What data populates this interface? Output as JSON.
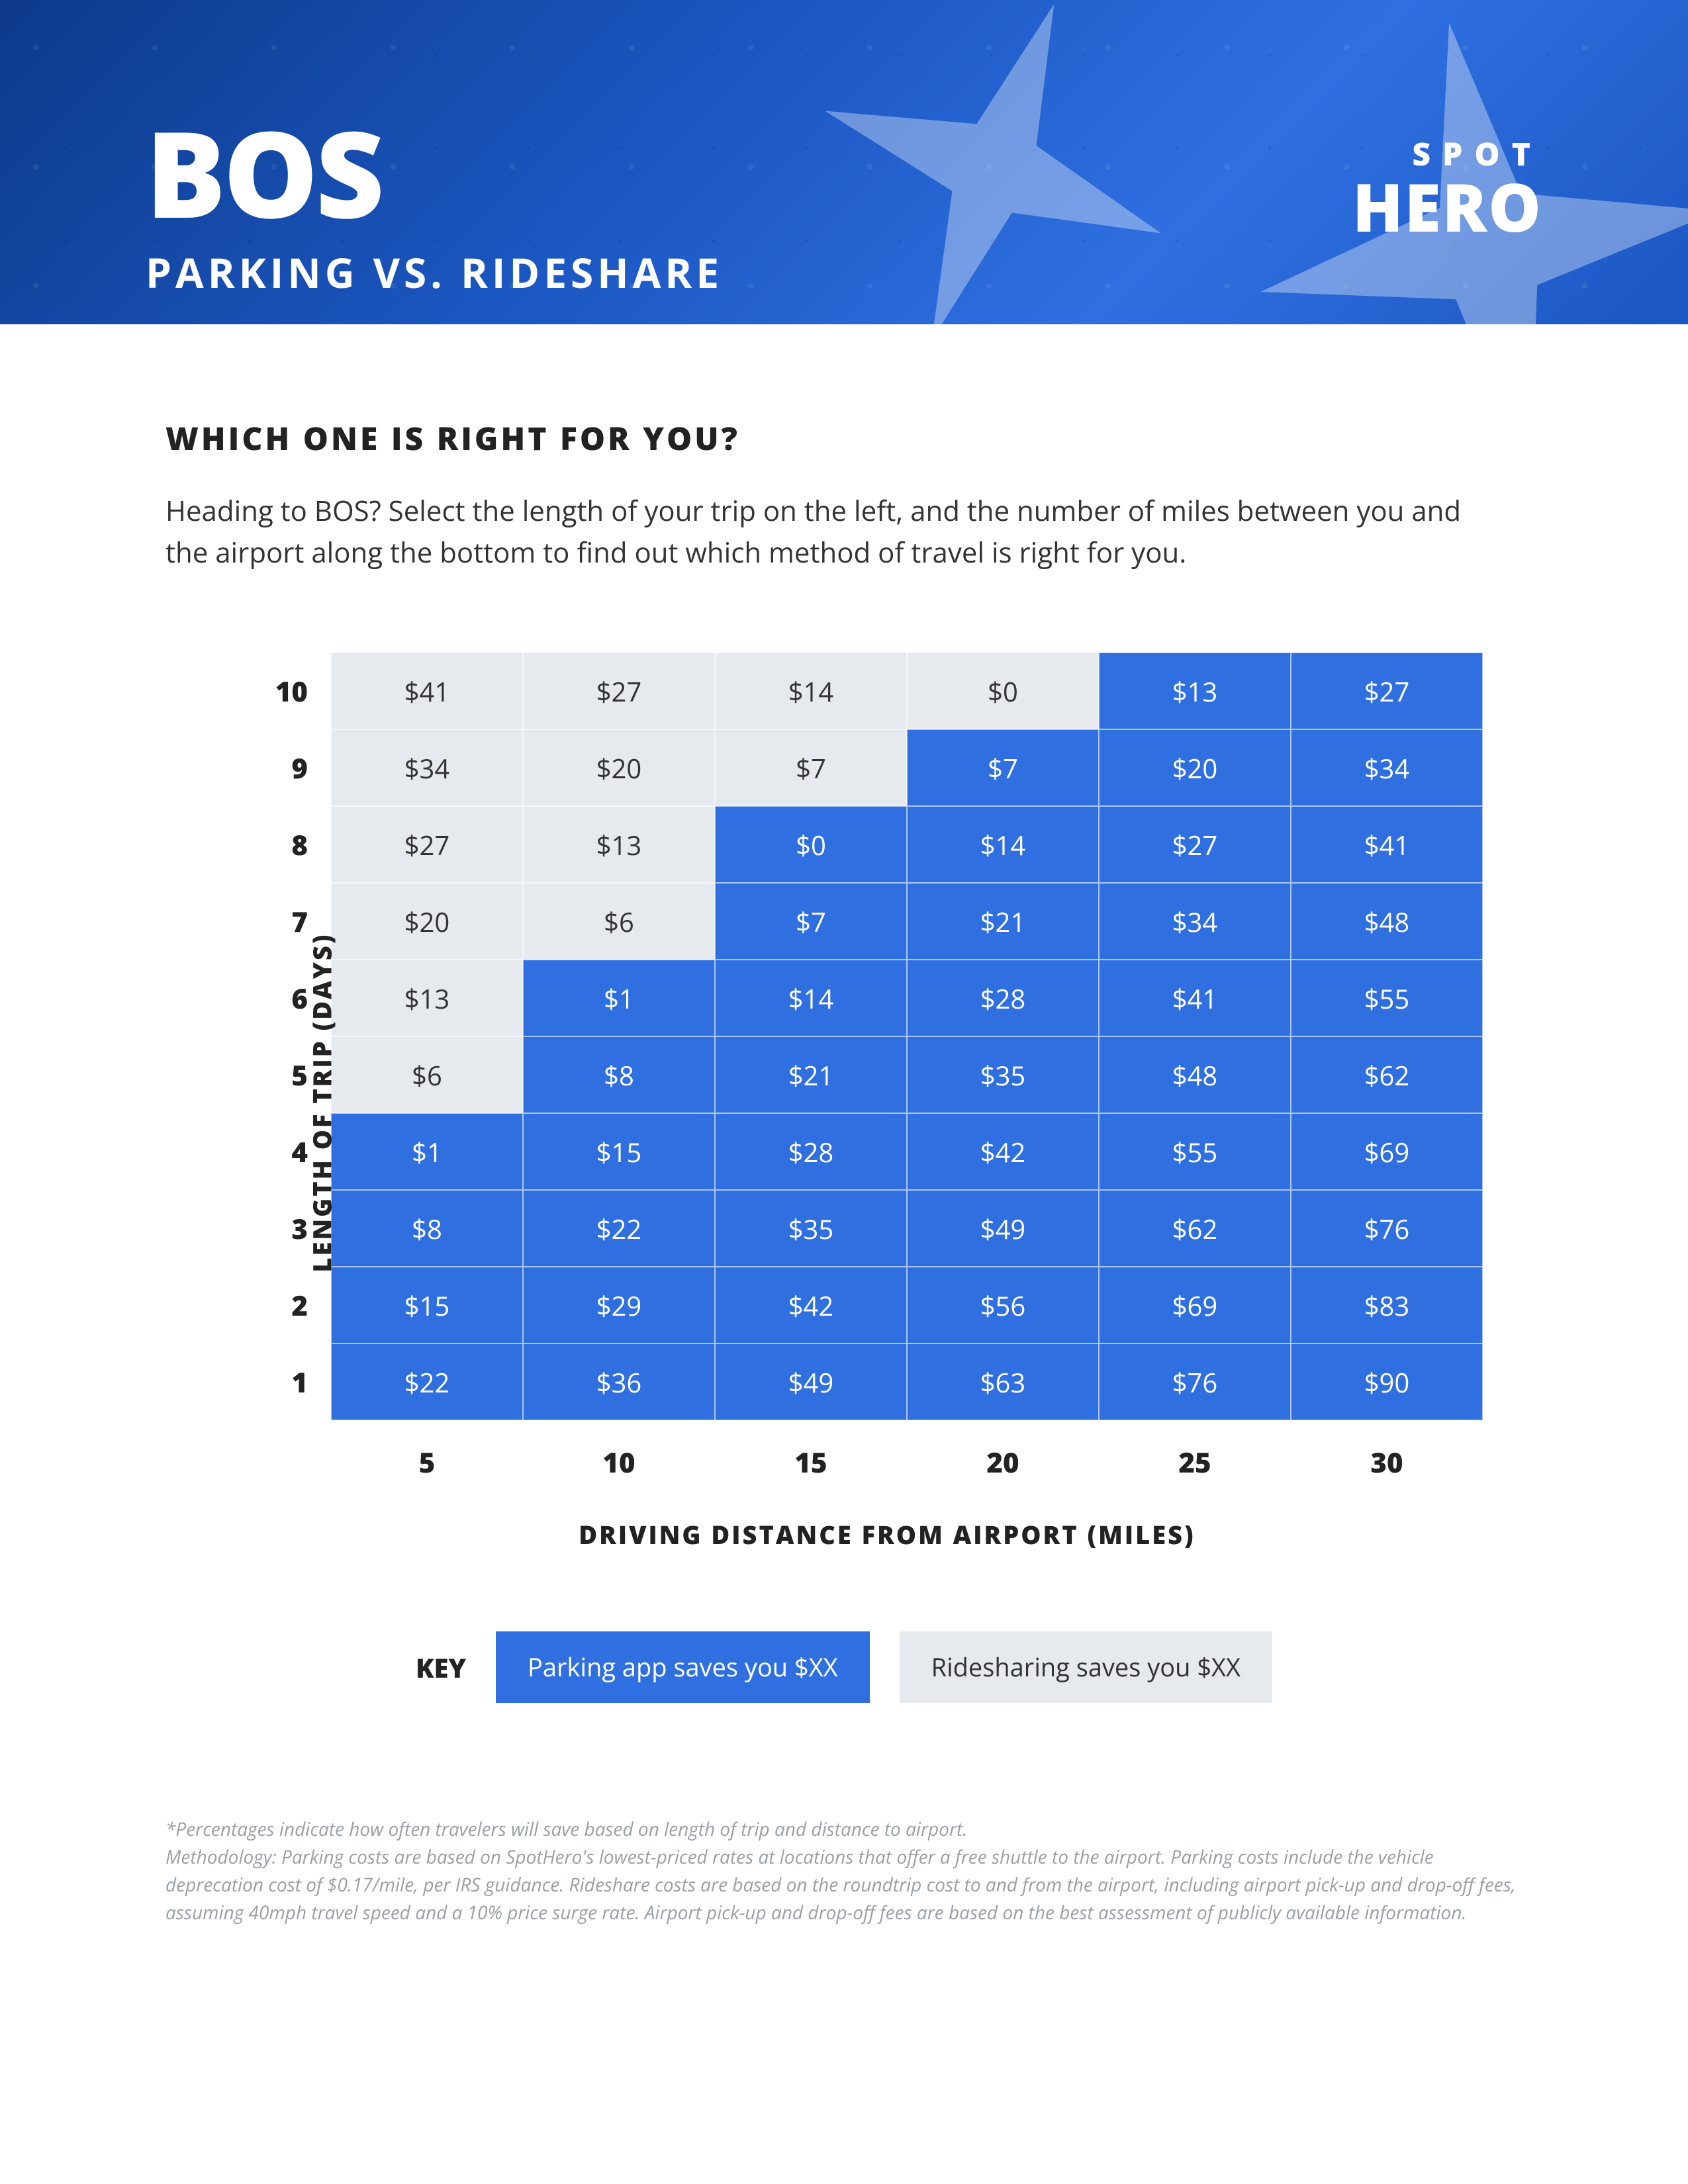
{
  "hero": {
    "airport_code": "BOS",
    "subtitle": "PARKING VS. RIDESHARE",
    "brand_top": "SPOT",
    "brand_bottom": "HERO",
    "bg_gradient_colors": [
      "#0d3a8a",
      "#1b57c2",
      "#2f6fe0",
      "#1b57c2"
    ]
  },
  "content": {
    "question": "WHICH ONE IS RIGHT FOR YOU?",
    "intro": "Heading to BOS? Select the length of your trip on the left, and the number of miles between you and the airport along the bottom to find out which method of travel is right for you."
  },
  "chart": {
    "type": "heatmap",
    "y_axis_label": "LENGTH OF TRIP (DAYS)",
    "x_axis_label": "DRIVING DISTANCE FROM AIRPORT (MILES)",
    "y_values": [
      10,
      9,
      8,
      7,
      6,
      5,
      4,
      3,
      2,
      1
    ],
    "x_values": [
      5,
      10,
      15,
      20,
      25,
      30
    ],
    "cell_prefix": "$",
    "colors": {
      "parking": "#2f6fe0",
      "rideshare": "#e6e9ed",
      "parking_text": "#ffffff",
      "rideshare_text": "#333333",
      "cell_border": "rgba(255,255,255,0.6)"
    },
    "cell_fontsize": 40,
    "rowhead_fontsize": 42,
    "axis_label_fontsize": 38,
    "rows": [
      [
        {
          "v": 41,
          "c": "grey"
        },
        {
          "v": 27,
          "c": "grey"
        },
        {
          "v": 14,
          "c": "grey"
        },
        {
          "v": 0,
          "c": "grey"
        },
        {
          "v": 13,
          "c": "blue"
        },
        {
          "v": 27,
          "c": "blue"
        }
      ],
      [
        {
          "v": 34,
          "c": "grey"
        },
        {
          "v": 20,
          "c": "grey"
        },
        {
          "v": 7,
          "c": "grey"
        },
        {
          "v": 7,
          "c": "blue"
        },
        {
          "v": 20,
          "c": "blue"
        },
        {
          "v": 34,
          "c": "blue"
        }
      ],
      [
        {
          "v": 27,
          "c": "grey"
        },
        {
          "v": 13,
          "c": "grey"
        },
        {
          "v": 0,
          "c": "blue"
        },
        {
          "v": 14,
          "c": "blue"
        },
        {
          "v": 27,
          "c": "blue"
        },
        {
          "v": 41,
          "c": "blue"
        }
      ],
      [
        {
          "v": 20,
          "c": "grey"
        },
        {
          "v": 6,
          "c": "grey"
        },
        {
          "v": 7,
          "c": "blue"
        },
        {
          "v": 21,
          "c": "blue"
        },
        {
          "v": 34,
          "c": "blue"
        },
        {
          "v": 48,
          "c": "blue"
        }
      ],
      [
        {
          "v": 13,
          "c": "grey"
        },
        {
          "v": 1,
          "c": "blue"
        },
        {
          "v": 14,
          "c": "blue"
        },
        {
          "v": 28,
          "c": "blue"
        },
        {
          "v": 41,
          "c": "blue"
        },
        {
          "v": 55,
          "c": "blue"
        }
      ],
      [
        {
          "v": 6,
          "c": "grey"
        },
        {
          "v": 8,
          "c": "blue"
        },
        {
          "v": 21,
          "c": "blue"
        },
        {
          "v": 35,
          "c": "blue"
        },
        {
          "v": 48,
          "c": "blue"
        },
        {
          "v": 62,
          "c": "blue"
        }
      ],
      [
        {
          "v": 1,
          "c": "blue"
        },
        {
          "v": 15,
          "c": "blue"
        },
        {
          "v": 28,
          "c": "blue"
        },
        {
          "v": 42,
          "c": "blue"
        },
        {
          "v": 55,
          "c": "blue"
        },
        {
          "v": 69,
          "c": "blue"
        }
      ],
      [
        {
          "v": 8,
          "c": "blue"
        },
        {
          "v": 22,
          "c": "blue"
        },
        {
          "v": 35,
          "c": "blue"
        },
        {
          "v": 49,
          "c": "blue"
        },
        {
          "v": 62,
          "c": "blue"
        },
        {
          "v": 76,
          "c": "blue"
        }
      ],
      [
        {
          "v": 15,
          "c": "blue"
        },
        {
          "v": 29,
          "c": "blue"
        },
        {
          "v": 42,
          "c": "blue"
        },
        {
          "v": 56,
          "c": "blue"
        },
        {
          "v": 69,
          "c": "blue"
        },
        {
          "v": 83,
          "c": "blue"
        }
      ],
      [
        {
          "v": 22,
          "c": "blue"
        },
        {
          "v": 36,
          "c": "blue"
        },
        {
          "v": 49,
          "c": "blue"
        },
        {
          "v": 63,
          "c": "blue"
        },
        {
          "v": 76,
          "c": "blue"
        },
        {
          "v": 90,
          "c": "blue"
        }
      ]
    ]
  },
  "key": {
    "label": "KEY",
    "parking_text": "Parking app saves you $XX",
    "rideshare_text": "Ridesharing saves you $XX"
  },
  "footnote": {
    "line1": "*Percentages indicate how often travelers will save based on length of trip and distance to airport.",
    "line2": "Methodology: Parking costs are based on SpotHero's lowest-priced rates at locations that offer a free shuttle to the airport. Parking costs include the vehicle deprecation cost of $0.17/mile, per IRS guidance. Rideshare costs are based on the roundtrip cost to and from the airport, including airport pick-up and drop-off fees, assuming 40mph travel speed and a 10% price surge rate. Airport pick-up and drop-off fees are based on the best assessment of publicly available information."
  }
}
